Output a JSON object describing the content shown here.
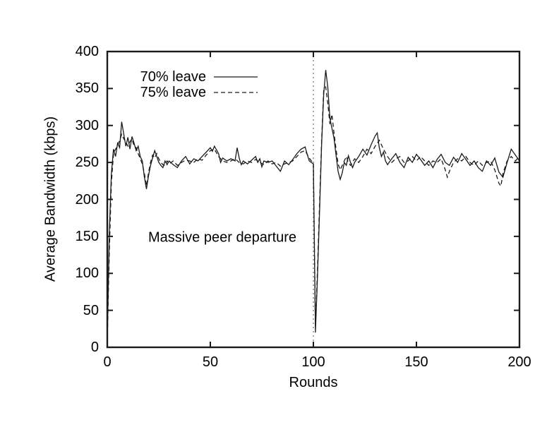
{
  "chart_data": {
    "type": "line",
    "title": "",
    "xlabel": "Rounds",
    "ylabel": "Average Bandwidth (kbps)",
    "xlim": [
      0,
      200
    ],
    "ylim": [
      0,
      400
    ],
    "xticks": [
      0,
      50,
      100,
      150,
      200
    ],
    "yticks": [
      0,
      50,
      100,
      150,
      200,
      250,
      300,
      350,
      400
    ],
    "grid": false,
    "frame_color": "#1a1a1a",
    "line_color": "#1a1a1a",
    "vline": {
      "x": 100,
      "style": "dotted",
      "color": "#a8a8a8"
    },
    "legend": {
      "position": "top-left-inside",
      "entries": [
        {
          "label": "70% leave",
          "dash": "solid"
        },
        {
          "label": "75% leave",
          "dash": "dashed"
        }
      ]
    },
    "annotations": [
      {
        "text": "Massive peer departure",
        "x": 56,
        "y": 148
      }
    ],
    "series": [
      {
        "name": "70% leave",
        "dash": "solid",
        "points": [
          [
            0,
            10
          ],
          [
            1,
            155
          ],
          [
            2,
            235
          ],
          [
            3,
            268
          ],
          [
            4,
            258
          ],
          [
            5,
            276
          ],
          [
            6,
            270
          ],
          [
            7,
            305
          ],
          [
            8,
            288
          ],
          [
            9,
            272
          ],
          [
            10,
            284
          ],
          [
            11,
            268
          ],
          [
            12,
            285
          ],
          [
            13,
            276
          ],
          [
            14,
            266
          ],
          [
            15,
            272
          ],
          [
            16,
            258
          ],
          [
            17,
            252
          ],
          [
            18,
            230
          ],
          [
            19,
            214
          ],
          [
            20,
            232
          ],
          [
            21,
            246
          ],
          [
            22,
            256
          ],
          [
            23,
            266
          ],
          [
            24,
            258
          ],
          [
            25,
            250
          ],
          [
            26,
            246
          ],
          [
            27,
            243
          ],
          [
            28,
            252
          ],
          [
            29,
            247
          ],
          [
            30,
            252
          ],
          [
            32,
            247
          ],
          [
            34,
            243
          ],
          [
            36,
            252
          ],
          [
            38,
            258
          ],
          [
            40,
            248
          ],
          [
            42,
            255
          ],
          [
            44,
            252
          ],
          [
            46,
            258
          ],
          [
            48,
            264
          ],
          [
            50,
            270
          ],
          [
            51,
            265
          ],
          [
            52,
            272
          ],
          [
            54,
            262
          ],
          [
            55,
            250
          ],
          [
            56,
            256
          ],
          [
            58,
            252
          ],
          [
            60,
            255
          ],
          [
            62,
            252
          ],
          [
            63,
            270
          ],
          [
            64,
            256
          ],
          [
            65,
            247
          ],
          [
            66,
            252
          ],
          [
            68,
            248
          ],
          [
            70,
            253
          ],
          [
            72,
            258
          ],
          [
            73,
            250
          ],
          [
            74,
            255
          ],
          [
            75,
            244
          ],
          [
            76,
            252
          ],
          [
            78,
            250
          ],
          [
            80,
            252
          ],
          [
            82,
            245
          ],
          [
            84,
            238
          ],
          [
            86,
            252
          ],
          [
            88,
            247
          ],
          [
            90,
            254
          ],
          [
            92,
            262
          ],
          [
            94,
            268
          ],
          [
            96,
            271
          ],
          [
            97,
            261
          ],
          [
            98,
            252
          ],
          [
            99,
            250
          ],
          [
            100,
            248
          ],
          [
            101,
            20
          ],
          [
            102,
            95
          ],
          [
            103,
            185
          ],
          [
            104,
            275
          ],
          [
            105,
            342
          ],
          [
            106,
            375
          ],
          [
            107,
            352
          ],
          [
            108,
            310
          ],
          [
            109,
            296
          ],
          [
            110,
            283
          ],
          [
            111,
            260
          ],
          [
            112,
            238
          ],
          [
            113,
            227
          ],
          [
            114,
            236
          ],
          [
            115,
            250
          ],
          [
            116,
            246
          ],
          [
            117,
            259
          ],
          [
            118,
            250
          ],
          [
            119,
            243
          ],
          [
            120,
            250
          ],
          [
            122,
            258
          ],
          [
            124,
            268
          ],
          [
            126,
            260
          ],
          [
            128,
            274
          ],
          [
            130,
            286
          ],
          [
            131,
            290
          ],
          [
            132,
            270
          ],
          [
            133,
            258
          ],
          [
            134,
            264
          ],
          [
            135,
            252
          ],
          [
            136,
            247
          ],
          [
            138,
            255
          ],
          [
            140,
            262
          ],
          [
            142,
            250
          ],
          [
            144,
            243
          ],
          [
            146,
            257
          ],
          [
            148,
            250
          ],
          [
            150,
            261
          ],
          [
            152,
            254
          ],
          [
            154,
            246
          ],
          [
            156,
            252
          ],
          [
            158,
            243
          ],
          [
            160,
            254
          ],
          [
            162,
            261
          ],
          [
            164,
            250
          ],
          [
            166,
            246
          ],
          [
            168,
            257
          ],
          [
            170,
            250
          ],
          [
            172,
            262
          ],
          [
            174,
            254
          ],
          [
            176,
            246
          ],
          [
            178,
            252
          ],
          [
            180,
            243
          ],
          [
            182,
            238
          ],
          [
            184,
            252
          ],
          [
            186,
            246
          ],
          [
            188,
            256
          ],
          [
            190,
            237
          ],
          [
            192,
            230
          ],
          [
            194,
            250
          ],
          [
            196,
            268
          ],
          [
            198,
            260
          ],
          [
            200,
            252
          ]
        ]
      },
      {
        "name": "75% leave",
        "dash": "dashed",
        "points": [
          [
            0,
            8
          ],
          [
            1,
            130
          ],
          [
            2,
            222
          ],
          [
            3,
            262
          ],
          [
            4,
            268
          ],
          [
            5,
            272
          ],
          [
            6,
            280
          ],
          [
            7,
            288
          ],
          [
            8,
            282
          ],
          [
            9,
            278
          ],
          [
            10,
            272
          ],
          [
            11,
            278
          ],
          [
            12,
            282
          ],
          [
            13,
            272
          ],
          [
            14,
            270
          ],
          [
            15,
            262
          ],
          [
            16,
            255
          ],
          [
            17,
            248
          ],
          [
            18,
            235
          ],
          [
            19,
            218
          ],
          [
            20,
            236
          ],
          [
            21,
            250
          ],
          [
            22,
            260
          ],
          [
            23,
            256
          ],
          [
            24,
            262
          ],
          [
            25,
            255
          ],
          [
            26,
            250
          ],
          [
            27,
            247
          ],
          [
            28,
            246
          ],
          [
            29,
            252
          ],
          [
            30,
            248
          ],
          [
            32,
            252
          ],
          [
            34,
            246
          ],
          [
            36,
            250
          ],
          [
            38,
            253
          ],
          [
            40,
            252
          ],
          [
            42,
            250
          ],
          [
            44,
            255
          ],
          [
            46,
            253
          ],
          [
            48,
            260
          ],
          [
            50,
            266
          ],
          [
            52,
            268
          ],
          [
            54,
            258
          ],
          [
            56,
            252
          ],
          [
            58,
            250
          ],
          [
            60,
            252
          ],
          [
            62,
            255
          ],
          [
            64,
            250
          ],
          [
            66,
            248
          ],
          [
            68,
            252
          ],
          [
            70,
            250
          ],
          [
            72,
            254
          ],
          [
            74,
            250
          ],
          [
            76,
            247
          ],
          [
            78,
            252
          ],
          [
            80,
            248
          ],
          [
            82,
            250
          ],
          [
            84,
            245
          ],
          [
            86,
            248
          ],
          [
            88,
            250
          ],
          [
            90,
            252
          ],
          [
            92,
            258
          ],
          [
            94,
            264
          ],
          [
            96,
            266
          ],
          [
            98,
            256
          ],
          [
            99,
            252
          ],
          [
            100,
            250
          ],
          [
            101,
            28
          ],
          [
            102,
            105
          ],
          [
            103,
            195
          ],
          [
            104,
            280
          ],
          [
            105,
            348
          ],
          [
            106,
            352
          ],
          [
            107,
            330
          ],
          [
            108,
            302
          ],
          [
            109,
            315
          ],
          [
            110,
            290
          ],
          [
            111,
            268
          ],
          [
            112,
            248
          ],
          [
            113,
            240
          ],
          [
            114,
            246
          ],
          [
            115,
            252
          ],
          [
            116,
            258
          ],
          [
            117,
            250
          ],
          [
            118,
            246
          ],
          [
            119,
            250
          ],
          [
            120,
            255
          ],
          [
            122,
            250
          ],
          [
            124,
            258
          ],
          [
            126,
            268
          ],
          [
            128,
            262
          ],
          [
            130,
            272
          ],
          [
            132,
            280
          ],
          [
            134,
            268
          ],
          [
            136,
            258
          ],
          [
            138,
            250
          ],
          [
            140,
            255
          ],
          [
            142,
            258
          ],
          [
            144,
            250
          ],
          [
            146,
            252
          ],
          [
            148,
            258
          ],
          [
            150,
            252
          ],
          [
            152,
            258
          ],
          [
            154,
            252
          ],
          [
            156,
            246
          ],
          [
            158,
            252
          ],
          [
            160,
            250
          ],
          [
            162,
            255
          ],
          [
            164,
            240
          ],
          [
            165,
            230
          ],
          [
            166,
            238
          ],
          [
            168,
            250
          ],
          [
            170,
            255
          ],
          [
            172,
            252
          ],
          [
            174,
            258
          ],
          [
            176,
            250
          ],
          [
            178,
            246
          ],
          [
            180,
            252
          ],
          [
            182,
            246
          ],
          [
            184,
            250
          ],
          [
            186,
            252
          ],
          [
            188,
            240
          ],
          [
            190,
            222
          ],
          [
            191,
            218
          ],
          [
            192,
            235
          ],
          [
            194,
            252
          ],
          [
            196,
            258
          ],
          [
            198,
            252
          ],
          [
            200,
            258
          ]
        ]
      }
    ]
  }
}
